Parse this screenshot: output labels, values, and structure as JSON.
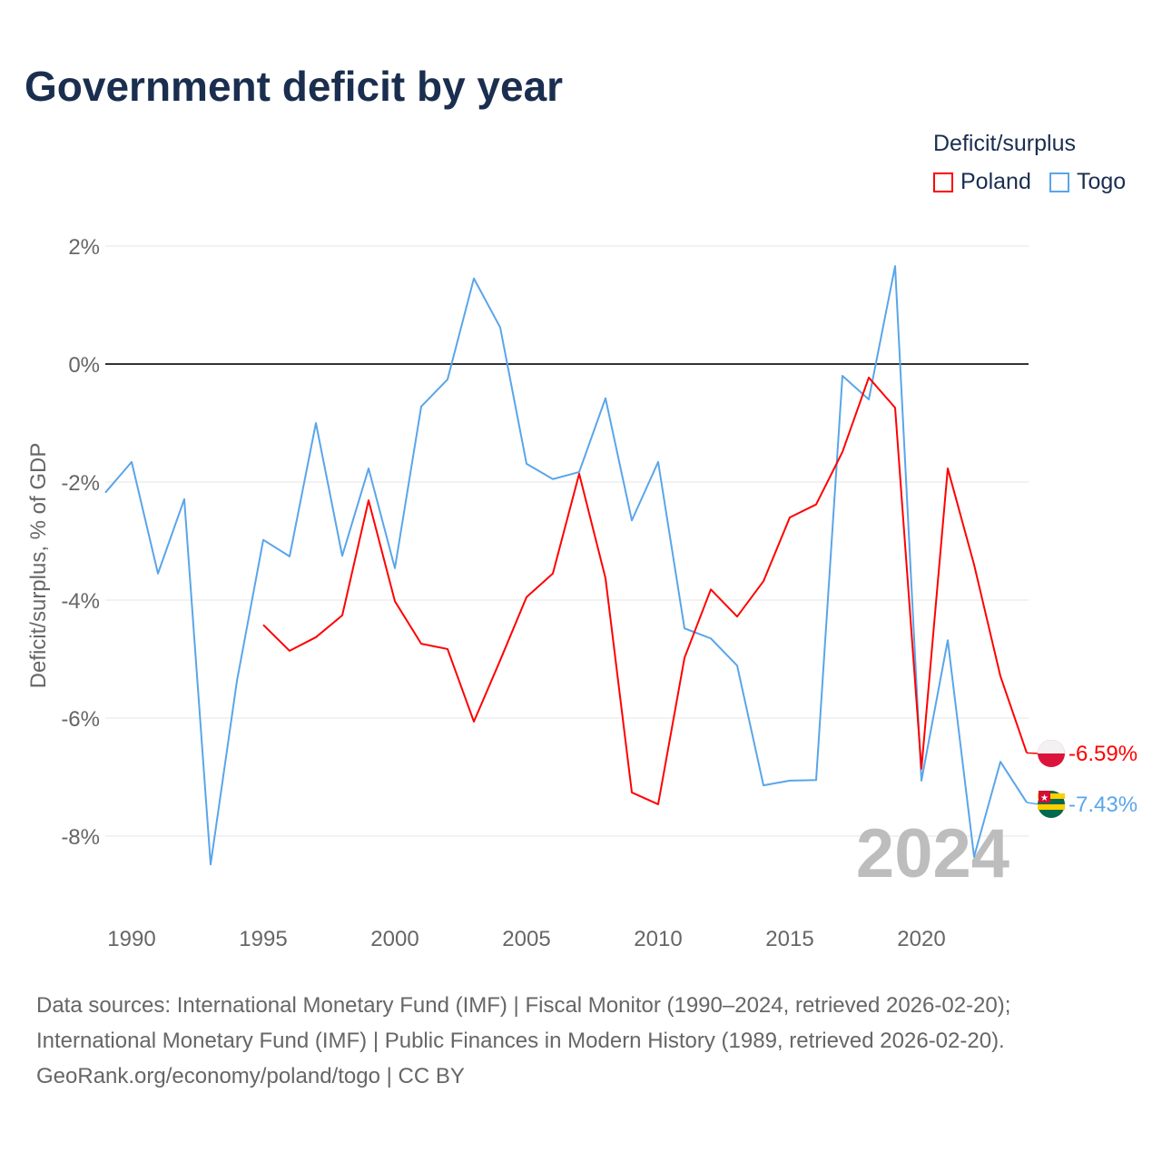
{
  "title": "Government deficit by year",
  "legend": {
    "title": "Deficit/surplus",
    "items": [
      {
        "name": "Poland",
        "color": "#ff0000"
      },
      {
        "name": "Togo",
        "color": "#5aa5ea"
      }
    ]
  },
  "sources": [
    "Data sources: International Monetary Fund (IMF) | Fiscal Monitor (1990–2024, retrieved 2026-02-20);",
    "International Monetary Fund (IMF) | Public Finances in Modern History (1989, retrieved 2026-02-20).",
    "GeoRank.org/economy/poland/togo | CC BY"
  ],
  "chart_data": {
    "type": "line",
    "title": "Government deficit by year",
    "xlabel": "",
    "ylabel": "Deficit/surplus, % of GDP",
    "xlim": [
      1989,
      2024
    ],
    "ylim": [
      -9,
      2
    ],
    "yticks": [
      2,
      0,
      -2,
      -4,
      -6,
      -8
    ],
    "ytick_labels": [
      "2%",
      "0%",
      "-2%",
      "-4%",
      "-6%",
      "-8%"
    ],
    "xticks": [
      1990,
      1995,
      2000,
      2005,
      2010,
      2015,
      2020
    ],
    "xtick_labels": [
      "1990",
      "1995",
      "2000",
      "2005",
      "2010",
      "2015",
      "2020"
    ],
    "year_label": "2024",
    "series": [
      {
        "name": "Poland",
        "color": "#ff0000",
        "end_label": "-6.59%",
        "x": [
          1995,
          1996,
          1997,
          1998,
          1999,
          2000,
          2001,
          2002,
          2003,
          2004,
          2005,
          2006,
          2007,
          2008,
          2009,
          2010,
          2011,
          2012,
          2013,
          2014,
          2015,
          2016,
          2017,
          2018,
          2019,
          2020,
          2021,
          2022,
          2023,
          2024
        ],
        "values": [
          -4.42,
          -4.86,
          -4.63,
          -4.26,
          -2.31,
          -4.02,
          -4.74,
          -4.83,
          -6.06,
          -5.02,
          -3.95,
          -3.55,
          -1.86,
          -3.63,
          -7.26,
          -7.46,
          -4.98,
          -3.82,
          -4.28,
          -3.68,
          -2.6,
          -2.38,
          -1.49,
          -0.23,
          -0.74,
          -6.86,
          -1.77,
          -3.4,
          -5.29,
          -6.59
        ]
      },
      {
        "name": "Togo",
        "color": "#5aa5ea",
        "end_label": "-7.43%",
        "x": [
          1989,
          1990,
          1991,
          1992,
          1993,
          1994,
          1995,
          1996,
          1997,
          1998,
          1999,
          2000,
          2001,
          2002,
          2003,
          2004,
          2005,
          2006,
          2007,
          2008,
          2009,
          2010,
          2011,
          2012,
          2013,
          2014,
          2015,
          2016,
          2017,
          2018,
          2019,
          2020,
          2021,
          2022,
          2023,
          2024
        ],
        "values": [
          -2.18,
          -1.66,
          -3.55,
          -2.29,
          -8.48,
          -5.37,
          -2.98,
          -3.26,
          -1.0,
          -3.25,
          -1.77,
          -3.46,
          -0.72,
          -0.26,
          1.45,
          0.62,
          -1.69,
          -1.95,
          -1.83,
          -0.58,
          -2.65,
          -1.66,
          -4.48,
          -4.65,
          -5.11,
          -7.14,
          -7.06,
          -7.05,
          -0.2,
          -0.6,
          1.66,
          -7.06,
          -4.68,
          -8.35,
          -6.74,
          -7.43
        ]
      }
    ]
  }
}
